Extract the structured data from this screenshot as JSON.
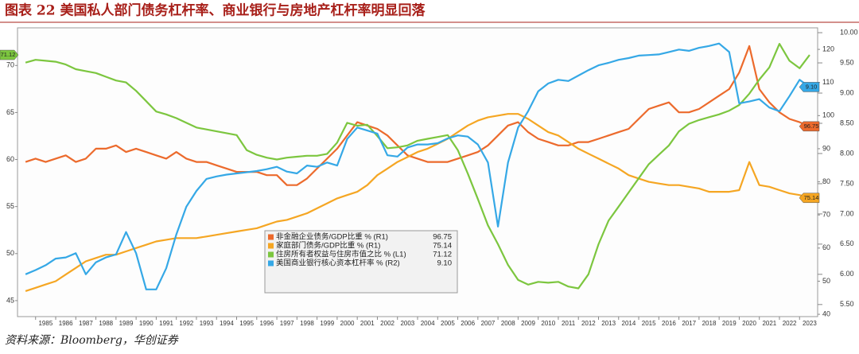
{
  "chart_data": {
    "type": "line",
    "title": "图表 22 美国私人部门债务杠杆率、商业银行与房地产杠杆率明显回落",
    "source": "资料来源：Bloomberg，华创证券",
    "x": [
      1984.5,
      1985,
      1985.5,
      1986,
      1986.5,
      1987,
      1987.5,
      1988,
      1988.5,
      1989,
      1989.5,
      1990,
      1990.5,
      1991,
      1991.5,
      1992,
      1992.5,
      1993,
      1993.5,
      1994,
      1994.5,
      1995,
      1995.5,
      1996,
      1996.5,
      1997,
      1997.5,
      1998,
      1998.5,
      1999,
      1999.5,
      2000,
      2000.5,
      2001,
      2001.5,
      2002,
      2002.5,
      2003,
      2003.5,
      2004,
      2004.5,
      2005,
      2005.5,
      2006,
      2006.5,
      2007,
      2007.5,
      2008,
      2008.5,
      2009,
      2009.5,
      2010,
      2010.5,
      2011,
      2011.5,
      2012,
      2012.5,
      2013,
      2013.5,
      2014,
      2014.5,
      2015,
      2015.5,
      2016,
      2016.5,
      2017,
      2017.5,
      2018,
      2018.5,
      2019,
      2019.5,
      2020,
      2020.5,
      2021,
      2021.5,
      2022,
      2022.5,
      2023,
      2023.5
    ],
    "xlim": [
      1984.1,
      2023.9
    ],
    "xticks": [
      1985,
      1986,
      1987,
      1988,
      1989,
      1990,
      1991,
      1992,
      1993,
      1994,
      1995,
      1996,
      1997,
      1998,
      1999,
      2000,
      2001,
      2002,
      2003,
      2004,
      2005,
      2006,
      2007,
      2008,
      2009,
      2010,
      2011,
      2012,
      2013,
      2014,
      2015,
      2016,
      2017,
      2018,
      2019,
      2020,
      2021,
      2022,
      2023
    ],
    "ylim": [
      43.3,
      74
    ],
    "yticks": [
      45,
      50,
      55,
      60,
      65,
      70
    ],
    "y2lim": [
      39.3,
      126.5
    ],
    "y2ticks": [
      40,
      50,
      60,
      70,
      80,
      90,
      100,
      110,
      120
    ],
    "y3lim": [
      5.3,
      10.08
    ],
    "y3ticks": [
      {
        "value": 5.5,
        "label": "5.50"
      },
      {
        "value": 6,
        "label": "6.00"
      },
      {
        "value": 6.5,
        "label": "6.50"
      },
      {
        "value": 7,
        "label": "7.00"
      },
      {
        "value": 7.5,
        "label": "7.50"
      },
      {
        "value": 8,
        "label": "8.00"
      },
      {
        "value": 8.5,
        "label": "8.50"
      },
      {
        "value": 9,
        "label": "9.00"
      },
      {
        "value": 9.5,
        "label": "9.50"
      },
      {
        "value": 10,
        "label": "10.00"
      }
    ],
    "grid": false,
    "series": [
      {
        "name": "非金融企业债务/GDP比重 % (R1)",
        "color": "#ec6a2c",
        "axis": "y2",
        "last_value": 96.75,
        "values": [
          86,
          87,
          86,
          87,
          88,
          86,
          87,
          90,
          90,
          91,
          89,
          90,
          89,
          88,
          87,
          89,
          87,
          86,
          86,
          85,
          84,
          83,
          83,
          83,
          82,
          82,
          79,
          79,
          81,
          84,
          87,
          90,
          94,
          98,
          97,
          96,
          94,
          91,
          88,
          87,
          86,
          86,
          86,
          87,
          88,
          89,
          91,
          94,
          97,
          98,
          95,
          93,
          92,
          91,
          91,
          92,
          92,
          93,
          94,
          95,
          96,
          99,
          102,
          103,
          104,
          101,
          101,
          102,
          104,
          106,
          108,
          113,
          121,
          108,
          104,
          101,
          99,
          98,
          96.75
        ]
      },
      {
        "name": "家庭部门债务/GDP比重 % (R1)",
        "color": "#f5a623",
        "axis": "y2",
        "last_value": 75.14,
        "values": [
          47,
          48,
          49,
          50,
          52,
          54,
          56,
          57,
          58,
          58,
          59,
          60,
          61,
          62,
          62.5,
          63,
          63,
          63,
          63.5,
          64,
          64.5,
          65,
          65.5,
          66,
          67,
          68,
          68.5,
          69.5,
          70.5,
          72,
          73.5,
          75,
          76,
          77,
          79,
          82,
          84,
          86,
          87.5,
          89,
          90,
          91.5,
          93,
          95,
          97,
          98.5,
          99.5,
          100,
          100.5,
          100.5,
          99,
          97,
          95,
          94,
          92,
          90,
          88.5,
          87,
          85.5,
          84,
          82,
          81,
          80,
          79.5,
          79,
          79,
          78.5,
          78,
          77,
          77,
          77,
          77.5,
          86,
          79,
          78.5,
          77.5,
          76.5,
          76,
          75.14
        ]
      },
      {
        "name": "住房所有者权益与住房市值之比 % (L1)",
        "color": "#7cc63f",
        "last_value": 71.12,
        "values": [
          70.3,
          70.6,
          70.5,
          70.4,
          70.1,
          69.6,
          69.4,
          69.2,
          68.8,
          68.4,
          68.2,
          67.3,
          66.2,
          65.1,
          64.8,
          64.4,
          63.9,
          63.4,
          63.2,
          63.0,
          62.8,
          62.6,
          61.0,
          60.5,
          60.2,
          60.0,
          60.2,
          60.3,
          60.4,
          60.4,
          60.6,
          61.8,
          63.9,
          63.6,
          63.7,
          62.5,
          61.2,
          61.3,
          61.5,
          62.0,
          62.2,
          62.4,
          62.6,
          61.0,
          58.5,
          55.8,
          53.0,
          51.0,
          48.8,
          47.2,
          46.7,
          47.0,
          46.9,
          47.0,
          46.5,
          46.3,
          47.8,
          51.0,
          53.5,
          55.0,
          56.5,
          58.0,
          59.5,
          60.5,
          61.5,
          63.0,
          63.8,
          64.2,
          64.5,
          64.8,
          65.2,
          65.8,
          67.0,
          68.5,
          69.8,
          72.3,
          70.5,
          69.7,
          71.12
        ]
      },
      {
        "name": "美国商业银行核心资本杠杆率 % (R2)",
        "color": "#35a8e6",
        "axis": "y3",
        "last_value": 9.1,
        "last_value_label": "9.10",
        "values": [
          6.0,
          6.07,
          6.15,
          6.26,
          6.28,
          6.35,
          6.0,
          6.2,
          6.28,
          6.33,
          6.7,
          6.35,
          5.75,
          5.75,
          6.1,
          6.66,
          7.12,
          7.38,
          7.58,
          7.62,
          7.65,
          7.67,
          7.69,
          7.71,
          7.74,
          7.78,
          7.7,
          7.67,
          7.8,
          7.78,
          7.85,
          7.8,
          8.24,
          8.43,
          8.38,
          8.33,
          7.97,
          7.95,
          8.1,
          8.15,
          8.15,
          8.17,
          8.25,
          8.3,
          8.28,
          8.15,
          7.85,
          6.79,
          7.85,
          8.43,
          8.7,
          9.03,
          9.16,
          9.22,
          9.2,
          9.29,
          9.38,
          9.46,
          9.5,
          9.55,
          9.58,
          9.62,
          9.63,
          9.64,
          9.68,
          9.72,
          9.7,
          9.75,
          9.78,
          9.82,
          9.68,
          8.83,
          8.86,
          8.9,
          8.76,
          8.7,
          8.95,
          9.22,
          9.1
        ]
      }
    ]
  }
}
